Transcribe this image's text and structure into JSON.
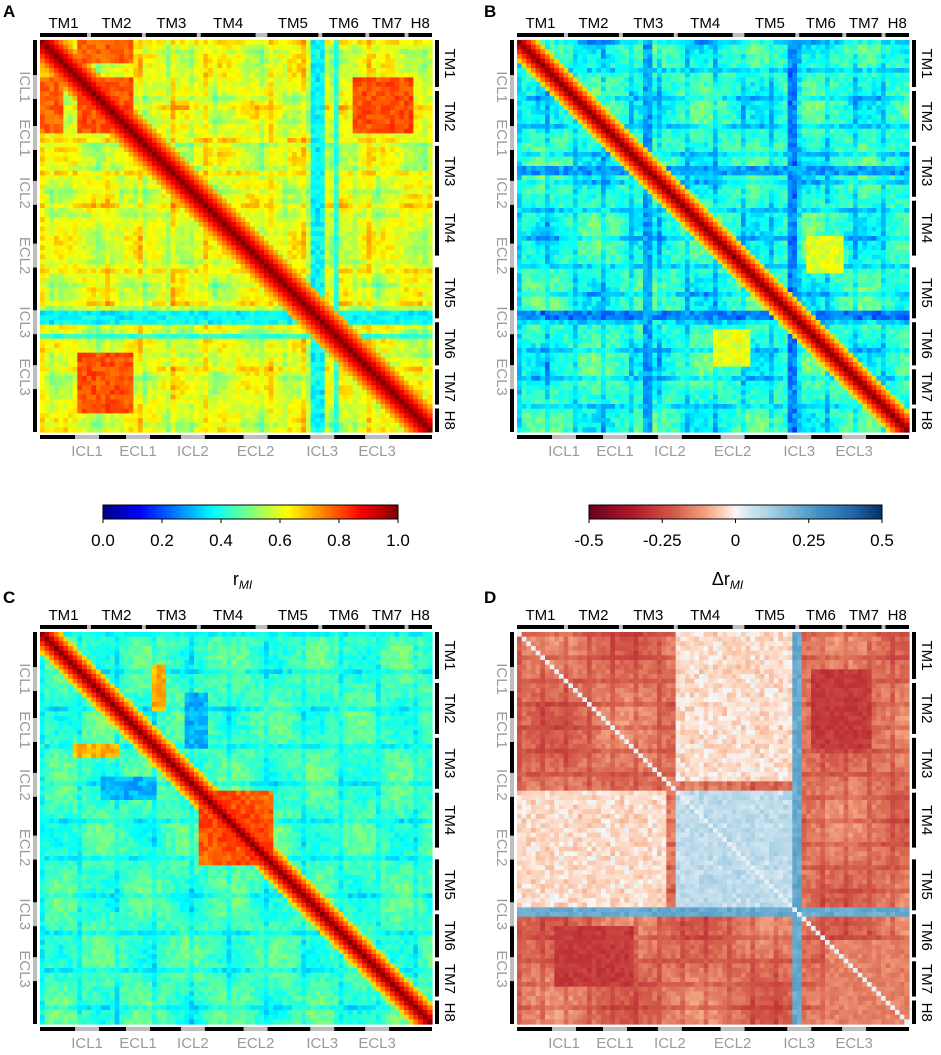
{
  "chart_data": [
    {
      "panel": "A",
      "type": "heatmap",
      "description_metric": "rMI",
      "colormap": "jet",
      "value_range": [
        0,
        1
      ],
      "tm_labels": [
        "TM1",
        "TM2",
        "TM3",
        "TM4",
        "TM5",
        "TM6",
        "TM7",
        "H8"
      ],
      "loop_labels": [
        "ICL1",
        "ECL1",
        "ICL2",
        "ECL2",
        "ICL3",
        "ECL3"
      ],
      "features": {
        "base": 0.62,
        "diag": 1.0,
        "low_band_region": "ICL3",
        "low_band_value": 0.35,
        "high_blocks": [
          [
            "TM2",
            "TM2",
            0.8
          ],
          [
            "TM2",
            "TM7",
            0.82
          ],
          [
            "TM1",
            "TM2",
            0.8
          ]
        ]
      }
    },
    {
      "panel": "B",
      "type": "heatmap",
      "description_metric": "rMI",
      "colormap": "jet",
      "value_range": [
        0,
        1
      ],
      "tm_labels": [
        "TM1",
        "TM2",
        "TM3",
        "TM4",
        "TM5",
        "TM6",
        "TM7",
        "H8"
      ],
      "loop_labels": [
        "ICL1",
        "ECL1",
        "ICL2",
        "ECL2",
        "ICL3",
        "ECL3"
      ],
      "features": {
        "base": 0.45,
        "diag": 1.0,
        "low_band_region": "ICL3",
        "low_band_value": 0.2
      }
    },
    {
      "panel": "C",
      "type": "heatmap",
      "description_metric": "rMI",
      "colormap": "jet",
      "value_range": [
        0,
        1
      ],
      "tm_labels": [
        "TM1",
        "TM2",
        "TM3",
        "TM4",
        "TM5",
        "TM6",
        "TM7",
        "H8"
      ],
      "loop_labels": [
        "ICL1",
        "ECL1",
        "ICL2",
        "ECL2",
        "ICL3",
        "ECL3"
      ],
      "features": {
        "base": 0.45,
        "diag": 1.0,
        "high_blocks": [
          [
            "TM4",
            "TM4",
            0.85
          ]
        ]
      }
    },
    {
      "panel": "D",
      "type": "heatmap",
      "description_metric": "Δr_MI",
      "colormap": "RdBu",
      "value_range": [
        -0.5,
        0.5
      ],
      "tm_labels": [
        "TM1",
        "TM2",
        "TM3",
        "TM4",
        "TM5",
        "TM6",
        "TM7",
        "H8"
      ],
      "loop_labels": [
        "ICL1",
        "ECL1",
        "ICL2",
        "ECL2",
        "ICL3",
        "ECL3"
      ],
      "features": {
        "base": -0.15,
        "diag": 0.0,
        "positive_region": [
          "TM4",
          "TM6"
        ]
      }
    }
  ],
  "colorbars": [
    {
      "name": "rMI",
      "label_main": "r",
      "label_sub": "MI",
      "colormap": "jet",
      "ticks": [
        "0.0",
        "0.2",
        "0.4",
        "0.6",
        "0.8",
        "1.0"
      ],
      "range": [
        0,
        1
      ]
    },
    {
      "name": "delta-rMI",
      "label_main": "Δr",
      "label_sub": "MI",
      "colormap": "RdBu",
      "ticks": [
        "-0.5",
        "-0.25",
        "0",
        "0.25",
        "0.5"
      ],
      "range": [
        -0.5,
        0.5
      ]
    }
  ],
  "segments": {
    "tm_top": [
      {
        "label": "TM1",
        "start": 0.0,
        "end": 0.12
      },
      {
        "label": "TM2",
        "start": 0.13,
        "end": 0.26
      },
      {
        "label": "TM3",
        "start": 0.27,
        "end": 0.4
      },
      {
        "label": "TM4",
        "start": 0.41,
        "end": 0.55
      },
      {
        "label": "TM5",
        "start": 0.58,
        "end": 0.71
      },
      {
        "label": "TM6",
        "start": 0.72,
        "end": 0.83
      },
      {
        "label": "TM7",
        "start": 0.84,
        "end": 0.93
      },
      {
        "label": "H8",
        "start": 0.94,
        "end": 1.0
      }
    ],
    "loops": [
      {
        "label": "ICL1",
        "pos": 0.12
      },
      {
        "label": "ECL1",
        "pos": 0.25
      },
      {
        "label": "ICL2",
        "pos": 0.39
      },
      {
        "label": "ECL2",
        "pos": 0.55
      },
      {
        "label": "ICL3",
        "pos": 0.72
      },
      {
        "label": "ECL3",
        "pos": 0.86
      }
    ]
  }
}
